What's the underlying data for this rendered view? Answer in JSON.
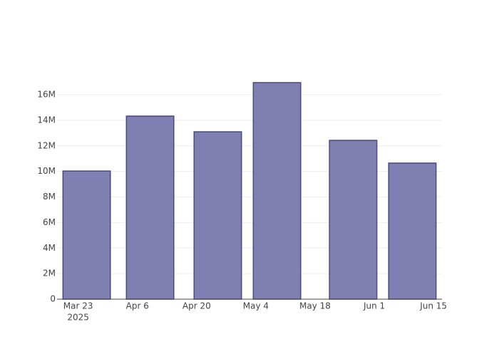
{
  "chart_data": {
    "type": "bar",
    "x": [
      "2025-03-25",
      "2025-04-09",
      "2025-04-25",
      "2025-05-09",
      "2025-05-27",
      "2025-06-10"
    ],
    "values": [
      10030000,
      14330000,
      13100000,
      16950000,
      12430000,
      10650000
    ],
    "color": "#7f7fb1",
    "line_color": "#4a4a80",
    "xlim": [
      "2025-03-18",
      "2025-06-17"
    ],
    "xticks": [
      {
        "value": "2025-03-23",
        "label": "Mar 23"
      },
      {
        "value": "2025-04-06",
        "label": "Apr 6"
      },
      {
        "value": "2025-04-20",
        "label": "Apr 20"
      },
      {
        "value": "2025-05-04",
        "label": "May 4"
      },
      {
        "value": "2025-05-18",
        "label": "May 18"
      },
      {
        "value": "2025-06-01",
        "label": "Jun 1"
      },
      {
        "value": "2025-06-15",
        "label": "Jun 15"
      }
    ],
    "x_year_label": "2025",
    "ylim": [
      0,
      17840000
    ],
    "yticks": [
      0,
      {
        "value": 2000000,
        "label": "2M"
      },
      {
        "value": 4000000,
        "label": "4M"
      },
      {
        "value": 6000000,
        "label": "6M"
      },
      {
        "value": 8000000,
        "label": "8M"
      },
      {
        "value": 10000000,
        "label": "10M"
      },
      {
        "value": 12000000,
        "label": "12M"
      },
      {
        "value": 14000000,
        "label": "14M"
      },
      {
        "value": 16000000,
        "label": "16M"
      }
    ],
    "grid": true
  }
}
